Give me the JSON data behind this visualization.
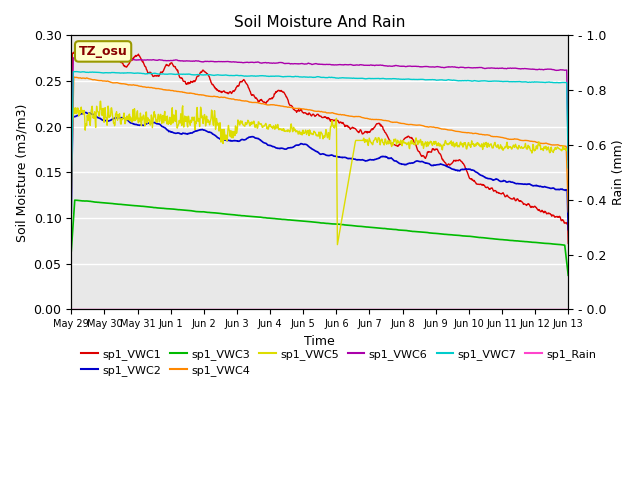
{
  "title": "Soil Moisture And Rain",
  "xlabel": "Time",
  "ylabel_left": "Soil Moisture (m3/m3)",
  "ylabel_right": "Rain (mm)",
  "ylim_left": [
    0.0,
    0.3
  ],
  "ylim_right": [
    0.0,
    1.0
  ],
  "yticks_left": [
    0.0,
    0.05,
    0.1,
    0.15,
    0.2,
    0.25,
    0.3
  ],
  "yticks_right": [
    0.0,
    0.2,
    0.4,
    0.6,
    0.8,
    1.0
  ],
  "bg_color": "#e8e8e8",
  "annotation_text": "TZ_osu",
  "annotation_box_color": "#ffffcc",
  "annotation_border_color": "#999900",
  "series_colors": {
    "sp1_VWC1": "#dd0000",
    "sp1_VWC2": "#0000cc",
    "sp1_VWC3": "#00bb00",
    "sp1_VWC4": "#ff8800",
    "sp1_VWC5": "#dddd00",
    "sp1_VWC6": "#aa00aa",
    "sp1_VWC7": "#00cccc",
    "sp1_Rain": "#ff44cc"
  },
  "xlim_days": [
    0,
    15
  ],
  "xtick_labels": [
    "May 29",
    "May 30",
    "May 31",
    "Jun 1",
    "Jun 2",
    "Jun 3",
    "Jun 4",
    "Jun 5",
    "Jun 6",
    "Jun 7",
    "Jun 8",
    "Jun 9",
    "Jun 10",
    "Jun 11",
    "Jun 12",
    "Jun 13"
  ],
  "xtick_positions": [
    0,
    1,
    2,
    3,
    4,
    5,
    6,
    7,
    8,
    9,
    10,
    11,
    12,
    13,
    14,
    15
  ]
}
